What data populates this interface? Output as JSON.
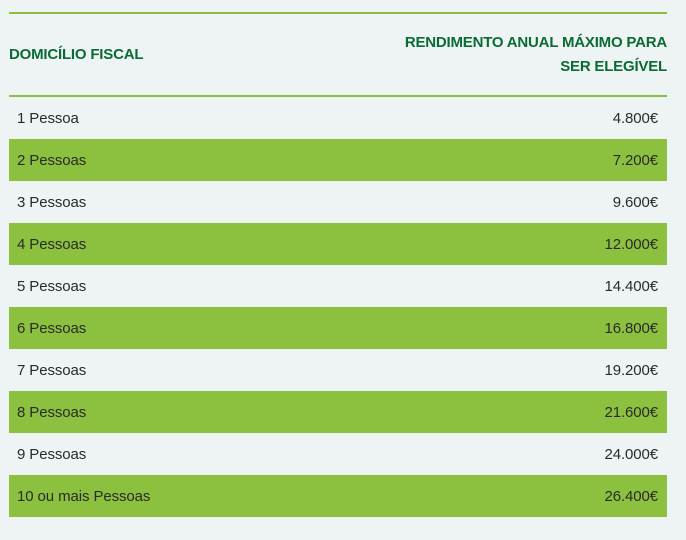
{
  "header": {
    "col1": "DOMICÍLIO FISCAL",
    "col2_line1": "RENDIMENTO ANUAL MÁXIMO PARA",
    "col2_line2": "SER ELEGÍVEL"
  },
  "rows": [
    {
      "label": "1 Pessoa",
      "value": "4.800€"
    },
    {
      "label": "2 Pessoas",
      "value": "7.200€"
    },
    {
      "label": "3 Pessoas",
      "value": "9.600€"
    },
    {
      "label": "4 Pessoas",
      "value": "12.000€"
    },
    {
      "label": "5 Pessoas",
      "value": "14.400€"
    },
    {
      "label": "6 Pessoas",
      "value": "16.800€"
    },
    {
      "label": "7 Pessoas",
      "value": "19.200€"
    },
    {
      "label": "8 Pessoas",
      "value": "21.600€"
    },
    {
      "label": "9 Pessoas",
      "value": "24.000€"
    },
    {
      "label": "10 ou mais Pessoas",
      "value": "26.400€"
    }
  ],
  "colors": {
    "header_text": "#0a6b35",
    "rule": "#8cbf3f",
    "alt_row": "#8cc13f",
    "background": "#eef3f3"
  }
}
